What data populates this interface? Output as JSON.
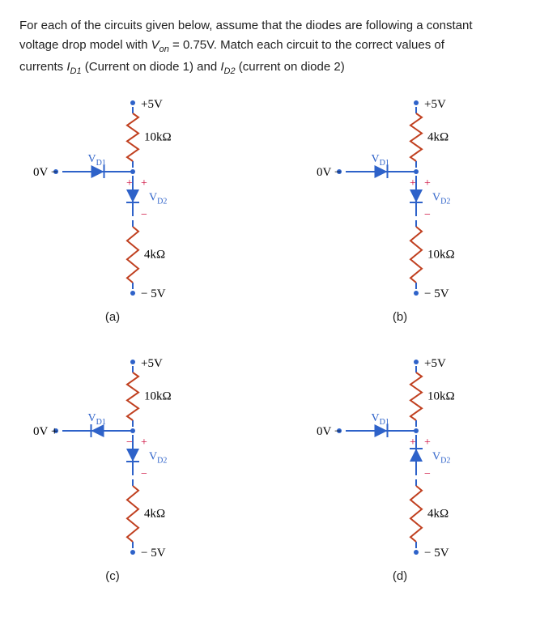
{
  "problem": {
    "line1_a": "For each of the circuits given below, assume that the diodes are following a constant",
    "line1_b": "voltage drop model with ",
    "Von_sym": "V",
    "Von_sub": "on",
    "Von_eq": " = 0.75V. Match each circuit to the correct values of",
    "line3_a": "currents ",
    "ID1_sym": "I",
    "ID1_sub": "D1",
    "ID1_txt": " (Current on diode 1) and ",
    "ID2_sym": "I",
    "ID2_sub": "D2",
    "ID2_txt": " (current on diode 2)"
  },
  "labels": {
    "plus5V": "+5V",
    "minus5V": "− 5V",
    "zeroV": "0V",
    "R10k": "10kΩ",
    "R4k": "4kΩ",
    "VD1": "V",
    "VD1_sub": "D",
    "VD1_sub2": "1",
    "VD2": "V",
    "VD2_sub": "D",
    "VD2_sub2": "2",
    "plus": "+",
    "minus": "−"
  },
  "circuits": {
    "a": {
      "caption": "(a)",
      "R_top": "R10k",
      "R_bot": "R4k",
      "D1_dir": "right",
      "D1_pol_left": "minus",
      "D1_pol_right": "plus",
      "D2_dir": "down",
      "D2_pol_top": "plus",
      "D2_pol_bot": "minus",
      "left_sign": "minus"
    },
    "b": {
      "caption": "(b)",
      "R_top": "R4k",
      "R_bot": "R10k",
      "D1_dir": "right",
      "D1_pol_left": "minus",
      "D1_pol_right": "plus",
      "D2_dir": "down",
      "D2_pol_top": "plus",
      "D2_pol_bot": "minus",
      "left_sign": "minus"
    },
    "c": {
      "caption": "(c)",
      "R_top": "R10k",
      "R_bot": "R4k",
      "D1_dir": "left",
      "D1_pol_left": "plus",
      "D1_pol_right": "minus",
      "D2_dir": "down",
      "D2_pol_top": "plus",
      "D2_pol_bot": "minus",
      "left_sign": "plus"
    },
    "d": {
      "caption": "(d)",
      "R_top": "R10k",
      "R_bot": "R4k",
      "D1_dir": "right",
      "D1_pol_left": "minus",
      "D1_pol_right": "plus",
      "D2_dir": "up",
      "D2_pol_top": "plus",
      "D2_pol_bot": "minus",
      "left_sign": "minus"
    }
  }
}
